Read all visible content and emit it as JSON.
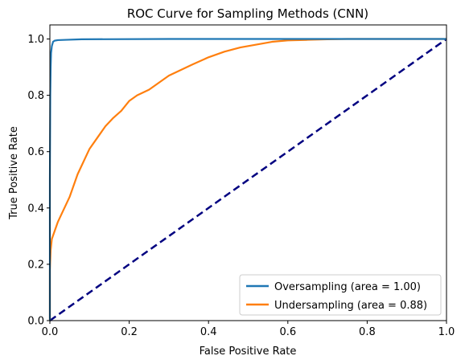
{
  "chart_data": {
    "type": "line",
    "title": "ROC Curve for Sampling Methods (CNN)",
    "xlabel": "False Positive Rate",
    "ylabel": "True Positive Rate",
    "xlim": [
      0.0,
      1.0
    ],
    "ylim": [
      0.0,
      1.05
    ],
    "xticks": [
      0.0,
      0.2,
      0.4,
      0.6,
      0.8,
      1.0
    ],
    "yticks": [
      0.0,
      0.2,
      0.4,
      0.6,
      0.8,
      1.0
    ],
    "xtick_labels": [
      "0.0",
      "0.2",
      "0.4",
      "0.6",
      "0.8",
      "1.0"
    ],
    "ytick_labels": [
      "0.0",
      "0.2",
      "0.4",
      "0.6",
      "0.8",
      "1.0"
    ],
    "grid": false,
    "legend_position": "lower-right",
    "series": [
      {
        "name": "Oversampling (area = 1.00)",
        "color": "#1f77b4",
        "style": "solid",
        "x": [
          0.0,
          0.0,
          0.001,
          0.002,
          0.003,
          0.005,
          0.008,
          0.012,
          0.02,
          0.04,
          0.08,
          0.3,
          0.6,
          1.0
        ],
        "y": [
          0.0,
          0.5,
          0.8,
          0.9,
          0.95,
          0.975,
          0.99,
          0.994,
          0.996,
          0.997,
          0.999,
          1.0,
          1.0,
          1.0
        ]
      },
      {
        "name": "Undersampling (area = 0.88)",
        "color": "#ff7f0e",
        "style": "solid",
        "x": [
          0.0,
          0.0,
          0.002,
          0.005,
          0.01,
          0.015,
          0.02,
          0.03,
          0.04,
          0.05,
          0.06,
          0.07,
          0.08,
          0.09,
          0.1,
          0.12,
          0.14,
          0.16,
          0.18,
          0.2,
          0.22,
          0.25,
          0.28,
          0.3,
          0.33,
          0.36,
          0.4,
          0.44,
          0.48,
          0.52,
          0.56,
          0.6,
          0.65,
          0.7,
          0.75,
          0.8,
          0.9,
          1.0
        ],
        "y": [
          0.0,
          0.18,
          0.25,
          0.29,
          0.31,
          0.33,
          0.35,
          0.38,
          0.41,
          0.44,
          0.48,
          0.52,
          0.55,
          0.58,
          0.61,
          0.65,
          0.69,
          0.72,
          0.745,
          0.78,
          0.8,
          0.82,
          0.85,
          0.87,
          0.89,
          0.91,
          0.935,
          0.955,
          0.97,
          0.98,
          0.99,
          0.995,
          0.997,
          0.999,
          1.0,
          1.0,
          1.0,
          1.0
        ]
      }
    ],
    "reference_line": {
      "color": "#000080",
      "style": "dashed",
      "x": [
        0.0,
        1.0
      ],
      "y": [
        0.0,
        1.0
      ]
    }
  }
}
